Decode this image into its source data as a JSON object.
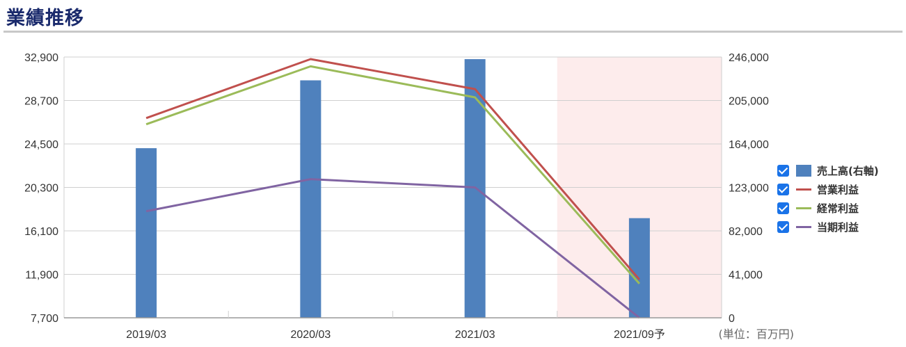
{
  "header": {
    "title": "業績推移"
  },
  "unit_label": "(単位：百万円)",
  "colors": {
    "bar": "#4f81bd",
    "operating": "#c0504d",
    "ordinary": "#9bbb59",
    "net": "#8064a2",
    "forecast_bg": "#fdecec",
    "checkbox": "#1a73e8"
  },
  "chart_data": {
    "type": "bar",
    "title": "業績推移",
    "categories": [
      "2019/03",
      "2020/03",
      "2021/03",
      "2021/09予"
    ],
    "forecast_categories": [
      "2021/09予"
    ],
    "y_left": {
      "ticks": [
        "7,700",
        "11,900",
        "16,100",
        "20,300",
        "24,500",
        "28,700",
        "32,900"
      ],
      "range": [
        7700,
        32900
      ]
    },
    "y_right": {
      "ticks": [
        "0",
        "41,000",
        "82,000",
        "123,000",
        "164,000",
        "205,000",
        "246,000"
      ],
      "range": [
        0,
        246000
      ]
    },
    "grid": true,
    "legend_position": "right",
    "series": [
      {
        "name": "売上高(右軸)",
        "type": "bar",
        "axis": "right",
        "values": [
          160000,
          224000,
          244000,
          94000
        ],
        "checked": true
      },
      {
        "name": "営業利益",
        "type": "line",
        "axis": "left",
        "values": [
          27000,
          32700,
          29800,
          11400
        ],
        "checked": true
      },
      {
        "name": "経常利益",
        "type": "line",
        "axis": "left",
        "values": [
          26400,
          32000,
          29000,
          11000
        ],
        "checked": true
      },
      {
        "name": "当期利益",
        "type": "line",
        "axis": "left",
        "values": [
          18000,
          21100,
          20300,
          7700
        ],
        "checked": true
      }
    ]
  }
}
